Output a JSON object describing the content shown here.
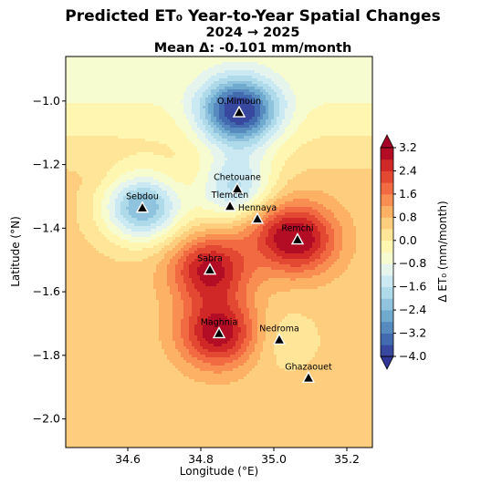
{
  "chart_data": {
    "type": "contour",
    "title_lines": [
      "Predicted ET₀ Year-to-Year Spatial Changes",
      "2024 → 2025",
      "Mean Δ: -0.101 mm/month"
    ],
    "xlabel": "Longitude (°E)",
    "ylabel": "Latitude (°N)",
    "xlim": [
      34.43,
      35.27
    ],
    "ylim": [
      -2.09,
      -0.86
    ],
    "xticks": [
      34.6,
      34.8,
      35.0,
      35.2
    ],
    "xtick_labels": [
      "34.6",
      "34.8",
      "35.0",
      "35.2"
    ],
    "yticks": [
      -1.0,
      -1.2,
      -1.4,
      -1.6,
      -1.8,
      -2.0
    ],
    "ytick_labels": [
      "−1.0",
      "−1.2",
      "−1.4",
      "−1.6",
      "−1.8",
      "−2.0"
    ],
    "colorbar": {
      "label": "Δ ET₀ (mm/month)",
      "range": [
        -4.0,
        3.2
      ],
      "ticks": [
        3.2,
        2.4,
        1.6,
        0.8,
        0.0,
        -0.8,
        -1.6,
        -2.4,
        -3.2,
        -4.0
      ],
      "tick_labels": [
        "3.2",
        "2.4",
        "1.6",
        "0.8",
        "0.0",
        "−0.8",
        "−1.6",
        "−2.4",
        "−3.2",
        "−4.0"
      ],
      "colormap": "RdYlBu_r",
      "extend": "both"
    },
    "stations": [
      {
        "name": "O.Mimoun",
        "lon": 34.905,
        "lat": -1.035,
        "delta": -4.0
      },
      {
        "name": "Sebdou",
        "lon": 34.64,
        "lat": -1.335,
        "delta": -3.0
      },
      {
        "name": "Chetouane",
        "lon": 34.9,
        "lat": -1.275,
        "delta": -2.2
      },
      {
        "name": "Tlemcen",
        "lon": 34.88,
        "lat": -1.33,
        "delta": 0.0
      },
      {
        "name": "Hennaya",
        "lon": 34.955,
        "lat": -1.37,
        "delta": 1.2
      },
      {
        "name": "Remchi",
        "lon": 35.065,
        "lat": -1.435,
        "delta": 3.2
      },
      {
        "name": "Sabra",
        "lon": 34.825,
        "lat": -1.53,
        "delta": 3.0
      },
      {
        "name": "Maghnia",
        "lon": 34.85,
        "lat": -1.73,
        "delta": 3.2
      },
      {
        "name": "Nedroma",
        "lon": 35.015,
        "lat": -1.75,
        "delta": -0.2
      },
      {
        "name": "Ghazaouet",
        "lon": 35.095,
        "lat": -1.87,
        "delta": 0.3
      }
    ]
  }
}
